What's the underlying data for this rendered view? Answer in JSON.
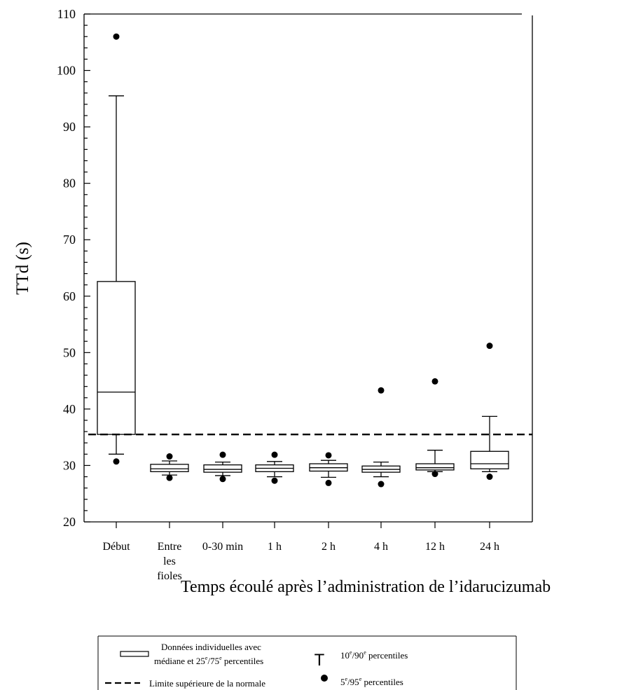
{
  "chart_data": {
    "type": "box",
    "title": "",
    "ylabel": "TTd (s)",
    "xlabel": "Temps écoulé après l’administration de l’idarucizumab",
    "ylim": [
      20,
      110
    ],
    "yticks": [
      20,
      30,
      40,
      50,
      60,
      70,
      80,
      90,
      100,
      110
    ],
    "reference_line": {
      "value": 35.5,
      "style": "dashed"
    },
    "categories": [
      [
        "Début"
      ],
      [
        "Entre",
        "les",
        "fioles"
      ],
      [
        "0-30 min"
      ],
      [
        "1 h"
      ],
      [
        "2 h"
      ],
      [
        "4 h"
      ],
      [
        "12 h"
      ],
      [
        "24 h"
      ]
    ],
    "boxes": [
      {
        "p5": 30.7,
        "p10": 32.0,
        "q1": 35.5,
        "median": 43.0,
        "q3": 62.6,
        "p90": 95.5,
        "p95": 106.0
      },
      {
        "p5": 27.8,
        "p10": 28.3,
        "q1": 28.9,
        "median": 29.4,
        "q3": 30.2,
        "p90": 30.8,
        "p95": 31.6
      },
      {
        "p5": 27.6,
        "p10": 28.2,
        "q1": 28.8,
        "median": 29.3,
        "q3": 30.1,
        "p90": 30.6,
        "p95": 31.9
      },
      {
        "p5": 27.3,
        "p10": 28.0,
        "q1": 28.9,
        "median": 29.5,
        "q3": 30.1,
        "p90": 30.7,
        "p95": 31.9
      },
      {
        "p5": 26.9,
        "p10": 27.9,
        "q1": 29.0,
        "median": 29.6,
        "q3": 30.3,
        "p90": 30.9,
        "p95": 31.8
      },
      {
        "p5": 26.7,
        "p10": 28.0,
        "q1": 28.8,
        "median": 29.3,
        "q3": 29.9,
        "p90": 30.6,
        "p95": 43.3
      },
      {
        "p5": 28.5,
        "p10": 28.9,
        "q1": 29.2,
        "median": 29.6,
        "q3": 30.3,
        "p90": 32.7,
        "p95": 44.9
      },
      {
        "p5": 28.0,
        "p10": 28.9,
        "q1": 29.4,
        "median": 30.3,
        "q3": 32.5,
        "p90": 38.7,
        "p95": 51.2
      }
    ],
    "legend": {
      "box_label_line1": "Données individuelles avec",
      "box_label_line2_pre": "médiane et 25",
      "box_label_line2_sup1": "e",
      "box_label_line2_mid": "/75",
      "box_label_line2_sup2": "e",
      "box_label_line2_post": " percentiles",
      "whisker_label_pre": "10",
      "whisker_label_sup1": "e",
      "whisker_label_mid": "/90",
      "whisker_label_sup2": "e",
      "whisker_label_post": " percentiles",
      "dot_label_pre": "5",
      "dot_label_sup1": "e",
      "dot_label_mid": "/95",
      "dot_label_sup2": "e",
      "dot_label_post": " percentiles",
      "line_label": "Limite supérieure de la normale"
    }
  }
}
